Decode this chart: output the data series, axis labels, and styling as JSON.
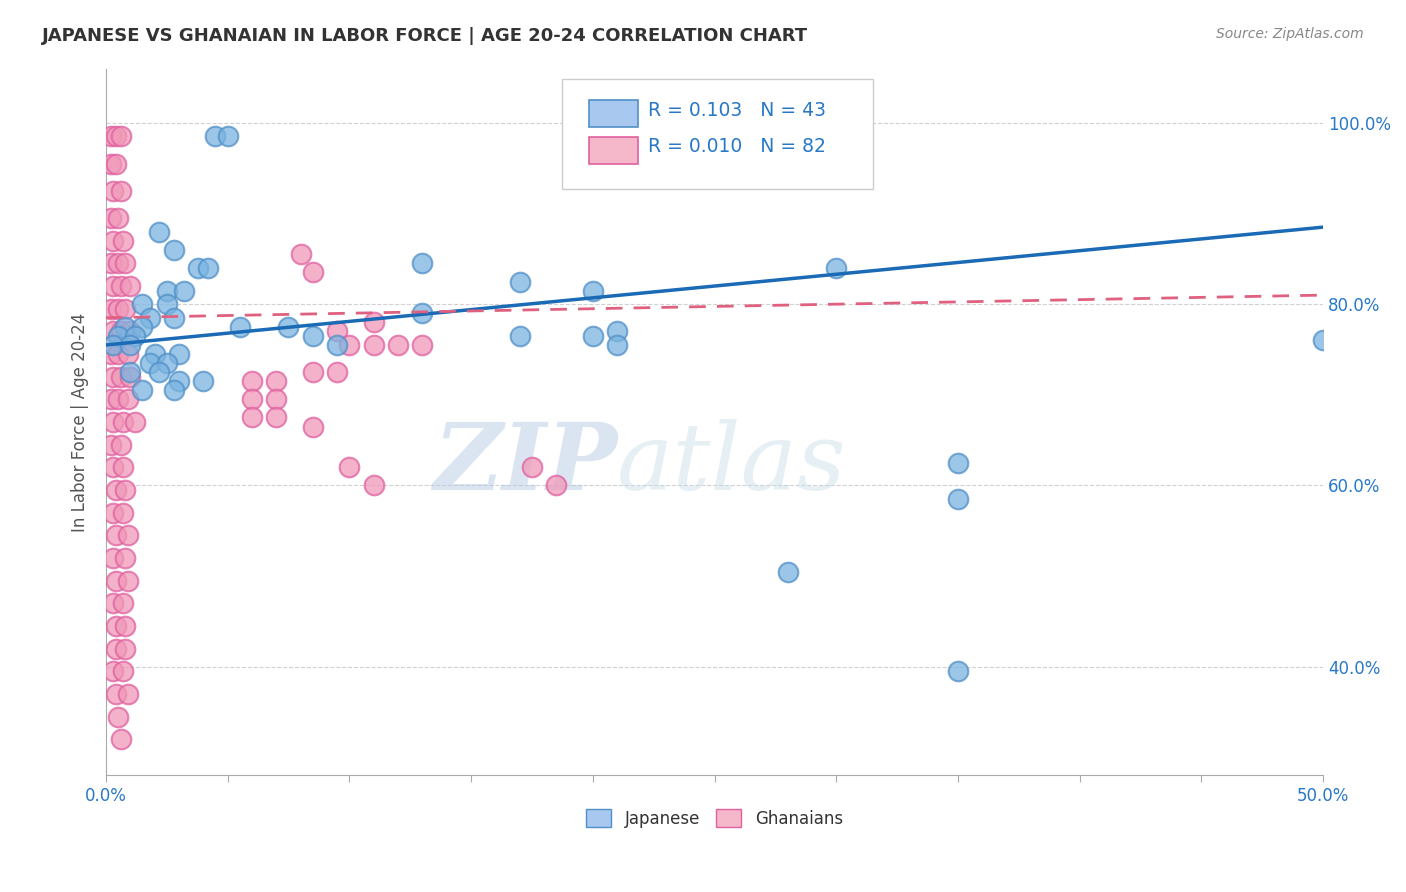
{
  "title": "JAPANESE VS GHANAIAN IN LABOR FORCE | AGE 20-24 CORRELATION CHART",
  "source": "Source: ZipAtlas.com",
  "ylabel": "In Labor Force | Age 20-24",
  "watermark_zip": "ZIP",
  "watermark_atlas": "atlas",
  "xlim": [
    0.0,
    0.5
  ],
  "ylim": [
    0.28,
    1.06
  ],
  "ytick_vals": [
    0.4,
    0.6,
    0.8,
    1.0
  ],
  "ytick_labels": [
    "40.0%",
    "60.0%",
    "80.0%",
    "100.0%"
  ],
  "xtick_vals": [
    0.0,
    0.05,
    0.1,
    0.15,
    0.2,
    0.25,
    0.3,
    0.35,
    0.4,
    0.45,
    0.5
  ],
  "xtick_labels": [
    "0.0%",
    "",
    "",
    "",
    "",
    "",
    "",
    "",
    "",
    "",
    "50.0%"
  ],
  "legend_box_color_japanese": "#a8c8f0",
  "legend_box_color_ghanaian": "#f5b8cb",
  "legend_text_color": "#2878c8",
  "japanese_color": "#7ab4e0",
  "ghanaian_color": "#f098b8",
  "japanese_edge_color": "#5090c8",
  "ghanaian_edge_color": "#e060a0",
  "japanese_scatter": [
    [
      0.045,
      0.985
    ],
    [
      0.05,
      0.985
    ],
    [
      0.022,
      0.88
    ],
    [
      0.028,
      0.86
    ],
    [
      0.038,
      0.84
    ],
    [
      0.042,
      0.84
    ],
    [
      0.025,
      0.815
    ],
    [
      0.032,
      0.815
    ],
    [
      0.015,
      0.8
    ],
    [
      0.025,
      0.8
    ],
    [
      0.018,
      0.785
    ],
    [
      0.028,
      0.785
    ],
    [
      0.008,
      0.775
    ],
    [
      0.015,
      0.775
    ],
    [
      0.005,
      0.765
    ],
    [
      0.012,
      0.765
    ],
    [
      0.003,
      0.755
    ],
    [
      0.01,
      0.755
    ],
    [
      0.02,
      0.745
    ],
    [
      0.03,
      0.745
    ],
    [
      0.018,
      0.735
    ],
    [
      0.025,
      0.735
    ],
    [
      0.01,
      0.725
    ],
    [
      0.022,
      0.725
    ],
    [
      0.03,
      0.715
    ],
    [
      0.04,
      0.715
    ],
    [
      0.015,
      0.705
    ],
    [
      0.028,
      0.705
    ],
    [
      0.055,
      0.775
    ],
    [
      0.075,
      0.775
    ],
    [
      0.095,
      0.755
    ],
    [
      0.085,
      0.765
    ],
    [
      0.13,
      0.845
    ],
    [
      0.13,
      0.79
    ],
    [
      0.17,
      0.825
    ],
    [
      0.17,
      0.765
    ],
    [
      0.2,
      0.815
    ],
    [
      0.2,
      0.765
    ],
    [
      0.21,
      0.77
    ],
    [
      0.21,
      0.755
    ],
    [
      0.3,
      0.84
    ],
    [
      0.35,
      0.625
    ],
    [
      0.35,
      0.585
    ],
    [
      0.28,
      0.505
    ],
    [
      0.35,
      0.395
    ],
    [
      0.5,
      0.76
    ]
  ],
  "ghanaian_scatter": [
    [
      0.002,
      0.985
    ],
    [
      0.004,
      0.985
    ],
    [
      0.006,
      0.985
    ],
    [
      0.002,
      0.955
    ],
    [
      0.004,
      0.955
    ],
    [
      0.003,
      0.925
    ],
    [
      0.006,
      0.925
    ],
    [
      0.002,
      0.895
    ],
    [
      0.005,
      0.895
    ],
    [
      0.003,
      0.87
    ],
    [
      0.007,
      0.87
    ],
    [
      0.002,
      0.845
    ],
    [
      0.005,
      0.845
    ],
    [
      0.008,
      0.845
    ],
    [
      0.003,
      0.82
    ],
    [
      0.006,
      0.82
    ],
    [
      0.01,
      0.82
    ],
    [
      0.002,
      0.795
    ],
    [
      0.005,
      0.795
    ],
    [
      0.008,
      0.795
    ],
    [
      0.003,
      0.77
    ],
    [
      0.006,
      0.77
    ],
    [
      0.01,
      0.77
    ],
    [
      0.002,
      0.745
    ],
    [
      0.005,
      0.745
    ],
    [
      0.009,
      0.745
    ],
    [
      0.003,
      0.72
    ],
    [
      0.006,
      0.72
    ],
    [
      0.01,
      0.72
    ],
    [
      0.002,
      0.695
    ],
    [
      0.005,
      0.695
    ],
    [
      0.009,
      0.695
    ],
    [
      0.003,
      0.67
    ],
    [
      0.007,
      0.67
    ],
    [
      0.012,
      0.67
    ],
    [
      0.002,
      0.645
    ],
    [
      0.006,
      0.645
    ],
    [
      0.003,
      0.62
    ],
    [
      0.007,
      0.62
    ],
    [
      0.004,
      0.595
    ],
    [
      0.008,
      0.595
    ],
    [
      0.003,
      0.57
    ],
    [
      0.007,
      0.57
    ],
    [
      0.004,
      0.545
    ],
    [
      0.009,
      0.545
    ],
    [
      0.003,
      0.52
    ],
    [
      0.008,
      0.52
    ],
    [
      0.004,
      0.495
    ],
    [
      0.009,
      0.495
    ],
    [
      0.003,
      0.47
    ],
    [
      0.007,
      0.47
    ],
    [
      0.004,
      0.445
    ],
    [
      0.008,
      0.445
    ],
    [
      0.004,
      0.42
    ],
    [
      0.008,
      0.42
    ],
    [
      0.003,
      0.395
    ],
    [
      0.007,
      0.395
    ],
    [
      0.004,
      0.37
    ],
    [
      0.009,
      0.37
    ],
    [
      0.005,
      0.345
    ],
    [
      0.006,
      0.32
    ],
    [
      0.08,
      0.855
    ],
    [
      0.085,
      0.835
    ],
    [
      0.095,
      0.77
    ],
    [
      0.1,
      0.755
    ],
    [
      0.11,
      0.78
    ],
    [
      0.11,
      0.755
    ],
    [
      0.12,
      0.755
    ],
    [
      0.13,
      0.755
    ],
    [
      0.085,
      0.725
    ],
    [
      0.095,
      0.725
    ],
    [
      0.06,
      0.715
    ],
    [
      0.07,
      0.715
    ],
    [
      0.06,
      0.695
    ],
    [
      0.07,
      0.695
    ],
    [
      0.06,
      0.675
    ],
    [
      0.07,
      0.675
    ],
    [
      0.085,
      0.665
    ],
    [
      0.1,
      0.62
    ],
    [
      0.11,
      0.6
    ],
    [
      0.175,
      0.62
    ],
    [
      0.185,
      0.6
    ]
  ],
  "blue_line": [
    [
      0.0,
      0.755
    ],
    [
      0.5,
      0.885
    ]
  ],
  "pink_line": [
    [
      0.0,
      0.785
    ],
    [
      0.5,
      0.81
    ]
  ],
  "grid_color": "#cccccc",
  "bg_color": "#ffffff",
  "title_color": "#333333",
  "ytick_color": "#2878c8",
  "source_color": "#888888"
}
